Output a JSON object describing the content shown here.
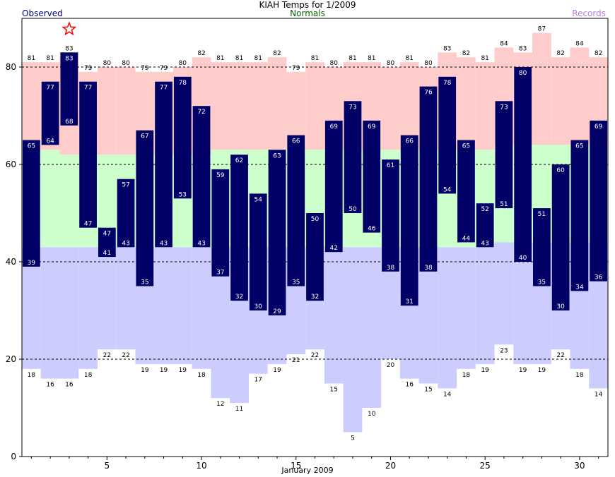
{
  "header": {
    "title": "KIAH Temps for 1/2009",
    "observed_label": "Observed",
    "normals_label": "Normals",
    "records_label": "Records"
  },
  "chart_data": {
    "type": "bar",
    "title": "KIAH Temps for 1/2009",
    "xlabel": "January 2009",
    "ylabel": "",
    "ylim": [
      0,
      90
    ],
    "xlim": [
      0.5,
      31.5
    ],
    "yticks": [
      0,
      20,
      40,
      60,
      80
    ],
    "xticks": [
      5,
      10,
      15,
      20,
      25,
      30
    ],
    "grid_lines": [
      20,
      40,
      60,
      80
    ],
    "days": [
      1,
      2,
      3,
      4,
      5,
      6,
      7,
      8,
      9,
      10,
      11,
      12,
      13,
      14,
      15,
      16,
      17,
      18,
      19,
      20,
      21,
      22,
      23,
      24,
      25,
      26,
      27,
      28,
      29,
      30,
      31
    ],
    "record_high": [
      81,
      81,
      83,
      79,
      80,
      80,
      79,
      79,
      80,
      82,
      81,
      81,
      81,
      82,
      79,
      81,
      80,
      81,
      81,
      80,
      81,
      80,
      83,
      82,
      81,
      84,
      83,
      87,
      82,
      84,
      82
    ],
    "record_low": [
      18,
      16,
      16,
      18,
      22,
      22,
      19,
      19,
      19,
      18,
      12,
      11,
      17,
      19,
      21,
      22,
      15,
      5,
      10,
      20,
      16,
      15,
      14,
      18,
      19,
      23,
      19,
      19,
      22,
      18,
      14
    ],
    "normal_high": [
      null,
      63,
      62,
      null,
      62,
      62,
      null,
      null,
      null,
      null,
      63,
      63,
      63,
      null,
      null,
      63,
      null,
      null,
      null,
      63,
      null,
      null,
      null,
      null,
      63,
      64,
      null,
      64,
      64,
      null,
      null
    ],
    "normal_low": [
      null,
      43,
      43,
      null,
      43,
      43,
      null,
      null,
      43,
      null,
      null,
      null,
      null,
      null,
      null,
      null,
      null,
      43,
      43,
      null,
      null,
      null,
      43,
      null,
      null,
      44,
      null,
      null,
      null,
      null,
      null
    ],
    "observed_high": [
      65,
      77,
      83,
      77,
      47,
      57,
      67,
      77,
      78,
      72,
      59,
      62,
      54,
      63,
      66,
      50,
      69,
      73,
      69,
      61,
      66,
      76,
      78,
      65,
      52,
      73,
      80,
      51,
      60,
      65,
      69
    ],
    "observed_low": [
      39,
      64,
      68,
      47,
      41,
      43,
      35,
      43,
      53,
      43,
      37,
      32,
      30,
      29,
      35,
      32,
      42,
      50,
      46,
      38,
      31,
      38,
      54,
      44,
      43,
      51,
      40,
      35,
      30,
      34,
      36
    ],
    "record_set_days": [
      3
    ],
    "colors": {
      "observed_bar": "#000066",
      "record_high_band": "#ffcccc",
      "normal_band": "#ccffcc",
      "record_low_band": "#ccccff",
      "record_star": "#ff0000",
      "grid": "#000000"
    }
  }
}
